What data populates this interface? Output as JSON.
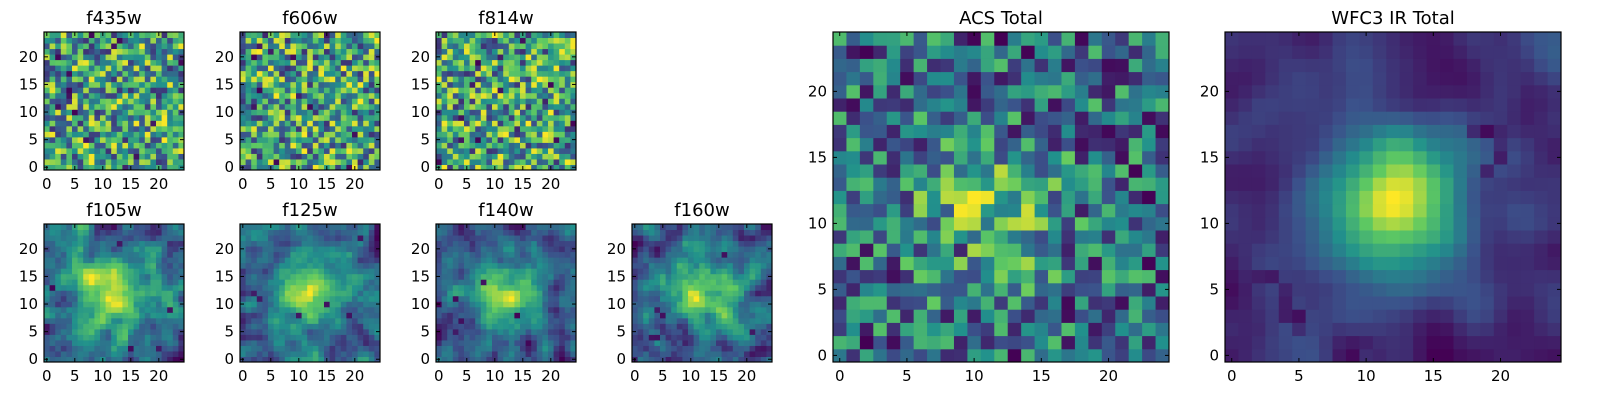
{
  "figure": {
    "background": "#ffffff",
    "frame_color": "#000000"
  },
  "colormap": {
    "name": "viridis",
    "stops": [
      "#440154",
      "#3b528b",
      "#21918c",
      "#5ec962",
      "#fde725"
    ]
  },
  "chart_data": [
    {
      "type": "heatmap",
      "title": "f435w",
      "grid": false,
      "pattern": "noise",
      "seed": 11,
      "xlim": [
        -0.5,
        24.5
      ],
      "ylim": [
        -0.5,
        24.5
      ],
      "xticks": [
        0,
        5,
        10,
        15,
        20
      ],
      "yticks": [
        0,
        5,
        10,
        15,
        20
      ]
    },
    {
      "type": "heatmap",
      "title": "f606w",
      "grid": false,
      "pattern": "noise",
      "seed": 23,
      "xlim": [
        -0.5,
        24.5
      ],
      "ylim": [
        -0.5,
        24.5
      ],
      "xticks": [
        0,
        5,
        10,
        15,
        20
      ],
      "yticks": [
        0,
        5,
        10,
        15,
        20
      ]
    },
    {
      "type": "heatmap",
      "title": "f814w",
      "grid": false,
      "pattern": "noise",
      "seed": 37,
      "xlim": [
        -0.5,
        24.5
      ],
      "ylim": [
        -0.5,
        24.5
      ],
      "xticks": [
        0,
        5,
        10,
        15,
        20
      ],
      "yticks": [
        0,
        5,
        10,
        15,
        20
      ]
    },
    {
      "type": "heatmap",
      "title": "f105w",
      "grid": false,
      "pattern": "smooth",
      "seed": 41,
      "xlim": [
        -0.5,
        24.5
      ],
      "ylim": [
        -0.5,
        24.5
      ],
      "xticks": [
        0,
        5,
        10,
        15,
        20
      ],
      "yticks": [
        0,
        5,
        10,
        15,
        20
      ]
    },
    {
      "type": "heatmap",
      "title": "f125w",
      "grid": false,
      "pattern": "smooth",
      "seed": 53,
      "xlim": [
        -0.5,
        24.5
      ],
      "ylim": [
        -0.5,
        24.5
      ],
      "xticks": [
        0,
        5,
        10,
        15,
        20
      ],
      "yticks": [
        0,
        5,
        10,
        15,
        20
      ]
    },
    {
      "type": "heatmap",
      "title": "f140w",
      "grid": false,
      "pattern": "smooth",
      "seed": 67,
      "xlim": [
        -0.5,
        24.5
      ],
      "ylim": [
        -0.5,
        24.5
      ],
      "xticks": [
        0,
        5,
        10,
        15,
        20
      ],
      "yticks": [
        0,
        5,
        10,
        15,
        20
      ]
    },
    {
      "type": "heatmap",
      "title": "f160w",
      "grid": false,
      "pattern": "smooth",
      "seed": 79,
      "xlim": [
        -0.5,
        24.5
      ],
      "ylim": [
        -0.5,
        24.5
      ],
      "xticks": [
        0,
        5,
        10,
        15,
        20
      ],
      "yticks": [
        0,
        5,
        10,
        15,
        20
      ]
    },
    {
      "type": "heatmap",
      "title": "ACS Total",
      "grid": false,
      "pattern": "acs",
      "seed": 97,
      "xlim": [
        -0.5,
        24.5
      ],
      "ylim": [
        -0.5,
        24.5
      ],
      "xticks": [
        0,
        5,
        10,
        15,
        20
      ],
      "yticks": [
        0,
        5,
        10,
        15,
        20
      ]
    },
    {
      "type": "heatmap",
      "title": "WFC3 IR Total",
      "grid": false,
      "pattern": "wfc3",
      "seed": 101,
      "xlim": [
        -0.5,
        24.5
      ],
      "ylim": [
        -0.5,
        24.5
      ],
      "xticks": [
        0,
        5,
        10,
        15,
        20
      ],
      "yticks": [
        0,
        5,
        10,
        15,
        20
      ]
    }
  ]
}
